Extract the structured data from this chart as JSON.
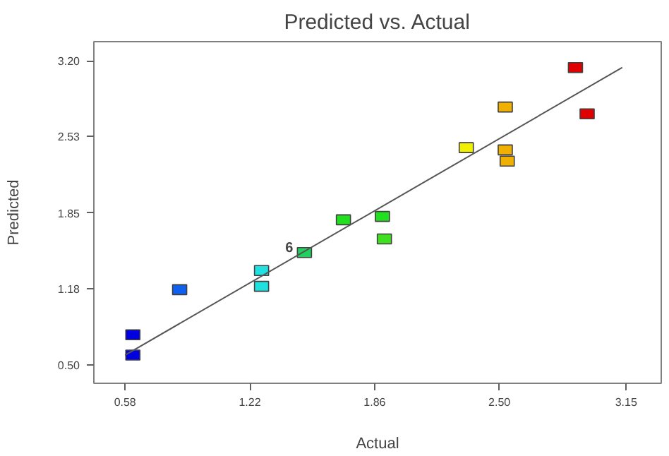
{
  "chart_data": {
    "type": "scatter",
    "title": "Predicted vs. Actual",
    "xlabel": "Actual",
    "ylabel": "Predicted",
    "xlim": [
      0.42,
      3.33
    ],
    "ylim": [
      0.34,
      3.37
    ],
    "xticks": [
      {
        "value": 0.58,
        "label": "0.58"
      },
      {
        "value": 1.22,
        "label": "1.22"
      },
      {
        "value": 1.86,
        "label": "1.86"
      },
      {
        "value": 2.5,
        "label": "2.50"
      },
      {
        "value": 3.15,
        "label": "3.15"
      }
    ],
    "yticks": [
      {
        "value": 0.5,
        "label": "0.50"
      },
      {
        "value": 1.18,
        "label": "1.18"
      },
      {
        "value": 1.85,
        "label": "1.85"
      },
      {
        "value": 2.53,
        "label": "2.53"
      },
      {
        "value": 3.2,
        "label": "3.20"
      }
    ],
    "grid": false,
    "annotations": [
      {
        "text": "6",
        "x": 1.5,
        "y": 1.5
      }
    ],
    "series": [
      {
        "marker": "square",
        "x": [
          0.62,
          0.62,
          0.86,
          1.28,
          1.28,
          1.5,
          1.7,
          1.9,
          1.91,
          2.33,
          2.53,
          2.53,
          2.54,
          2.89,
          2.95
        ],
        "values": [
          0.59,
          0.77,
          1.17,
          1.34,
          1.2,
          1.5,
          1.79,
          1.82,
          1.62,
          2.43,
          2.79,
          2.41,
          2.31,
          3.14,
          2.73
        ],
        "colors": [
          "#0000e0",
          "#0000e0",
          "#1060f0",
          "#20e0e0",
          "#20e0e0",
          "#20d060",
          "#20e020",
          "#20e020",
          "#40e020",
          "#f0f000",
          "#f0b000",
          "#f0b000",
          "#f0b000",
          "#e00000",
          "#e00000"
        ]
      },
      {
        "type": "line",
        "x": [
          0.58,
          3.13
        ],
        "values": [
          0.59,
          3.14
        ],
        "color": "#555555",
        "marker": "none"
      }
    ]
  }
}
